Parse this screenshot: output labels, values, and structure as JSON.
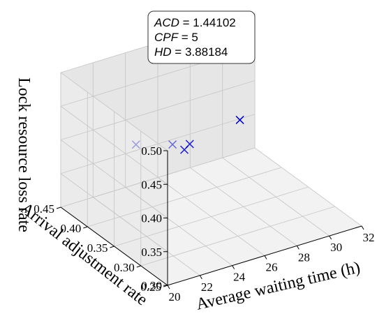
{
  "chart_data": {
    "type": "scatter",
    "projection": "3d",
    "xlabel": "Average waiting time (h)",
    "ylabel": "Arrival adjustment rate",
    "zlabel": "Lock resource loss rate",
    "xlim": [
      20,
      32
    ],
    "ylim": [
      0.25,
      0.45
    ],
    "zlim": [
      0.3,
      0.5
    ],
    "x_ticks": [
      "20",
      "22",
      "24",
      "26",
      "28",
      "30",
      "32"
    ],
    "y_ticks": [
      "0.25",
      "0.30",
      "0.35",
      "0.40",
      "0.45"
    ],
    "z_ticks": [
      "0.30",
      "0.35",
      "0.40",
      "0.45",
      "0.50"
    ],
    "marker": "x",
    "marker_color": "#0000cc",
    "points": [
      {
        "x": 23.0,
        "y": 0.4,
        "z": 0.4,
        "alpha": 0.35
      },
      {
        "x": 24.6,
        "y": 0.38,
        "z": 0.4,
        "alpha": 0.55
      },
      {
        "x": 25.0,
        "y": 0.37,
        "z": 0.395,
        "alpha": 0.85
      },
      {
        "x": 25.5,
        "y": 0.375,
        "z": 0.397,
        "alpha": 0.85
      },
      {
        "x": 28.6,
        "y": 0.375,
        "z": 0.41,
        "alpha": 1.0
      }
    ],
    "annotation": [
      {
        "var": "ACD",
        "value": "1.44102"
      },
      {
        "var": "CPF",
        "value": "5"
      },
      {
        "var": "HD",
        "value": "3.88184"
      }
    ],
    "grid": true
  }
}
